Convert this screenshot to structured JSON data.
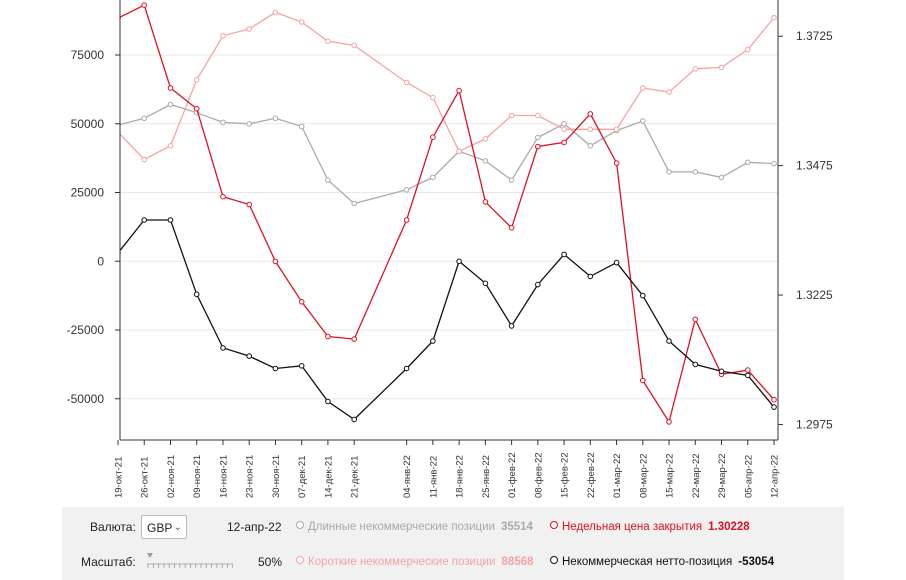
{
  "chart_data": {
    "type": "line",
    "x": [
      "19-окт-21",
      "26-окт-21",
      "02-ноя-21",
      "09-ноя-21",
      "16-ноя-21",
      "23-ноя-21",
      "30-ноя-21",
      "07-дек-21",
      "14-дек-21",
      "21-дек-21",
      "04-янв-22",
      "11-янв-22",
      "18-янв-22",
      "25-янв-22",
      "01-фев-22",
      "08-фев-22",
      "15-фев-22",
      "22-фев-22",
      "01-мар-22",
      "08-мар-22",
      "15-мар-22",
      "22-мар-22",
      "29-мар-22",
      "05-апр-22",
      "12-апр-22"
    ],
    "xdays": [
      0,
      7,
      14,
      21,
      28,
      35,
      42,
      49,
      56,
      63,
      77,
      84,
      91,
      98,
      105,
      112,
      119,
      126,
      133,
      140,
      147,
      154,
      161,
      168,
      175
    ],
    "x_tick_labels": [
      "19-окт-21",
      "26-окт-21",
      "02-ноя-21",
      "09-ноя-21",
      "16-ноя-21",
      "23-ноя-21",
      "30-ноя-21",
      "07-дек-21",
      "14-дек-21",
      "21-дек-21",
      "04-янв-22",
      "11-янв-22",
      "18-янв-22",
      "25-янв-22",
      "01-фев-22",
      "08-фев-22",
      "15-фев-22",
      "22-фев-22",
      "01-мар-22",
      "08-мар-22",
      "15-мар-22",
      "22-мар-22",
      "29-мар-22",
      "05-апр-22",
      "12-апр-22"
    ],
    "y_left": {
      "ticks": [
        75000,
        50000,
        25000,
        0,
        -25000,
        -50000
      ],
      "ylim": [
        -65000,
        95000
      ]
    },
    "y_right": {
      "ticks": [
        "1.3725",
        "1.3475",
        "1.3225",
        "1.2975"
      ],
      "tick_values": [
        1.3725,
        1.3475,
        1.3225,
        1.2975
      ],
      "ylim": [
        1.2945,
        1.3795
      ]
    },
    "series": [
      {
        "name": "Длинные некоммерческие позиции",
        "axis": "left",
        "color": "#aaaaaa",
        "values": [
          49500,
          52000,
          57000,
          54000,
          50500,
          50000,
          52000,
          49000,
          29500,
          21000,
          26000,
          30500,
          40000,
          36500,
          29500,
          45000,
          50000,
          42000,
          47500,
          51000,
          32500,
          32500,
          30500,
          36000,
          35514
        ]
      },
      {
        "name": "Короткие некоммерческие позиции",
        "axis": "left",
        "color": "#f4a3a3",
        "values": [
          47000,
          37000,
          42000,
          66000,
          82000,
          84500,
          90500,
          87000,
          80000,
          78500,
          65000,
          59500,
          40000,
          44500,
          53000,
          53000,
          48000,
          48000,
          48000,
          63000,
          61500,
          70000,
          70500,
          77000,
          88568
        ]
      },
      {
        "name": "Недельная цена закрытия",
        "axis": "right",
        "color": "#dd1122",
        "values": [
          1.376,
          1.3785,
          1.3625,
          1.3585,
          1.3415,
          1.34,
          1.329,
          1.3212,
          1.3145,
          1.314,
          1.337,
          1.353,
          1.362,
          1.3405,
          1.3355,
          1.3512,
          1.352,
          1.3575,
          1.348,
          1.306,
          1.298,
          1.3178,
          1.3072,
          1.308,
          1.30228
        ]
      },
      {
        "name": "Некоммерческая нетто-позиция",
        "axis": "left",
        "color": "#111111",
        "values": [
          3000,
          15000,
          15000,
          -12000,
          -31500,
          -34500,
          -39000,
          -38000,
          -51000,
          -57500,
          -39000,
          -29000,
          0,
          -8000,
          -23500,
          -8500,
          2500,
          -5500,
          -500,
          -12500,
          -29000,
          -37500,
          -40000,
          -41500,
          -53054
        ]
      }
    ]
  },
  "controls": {
    "currency_label": "Валюта:",
    "currency_value": "GBP",
    "date": "12-апр-22",
    "scale_label": "Масштаб:",
    "scale_value": "50%",
    "scale_level": 0.0
  },
  "legend": {
    "long": {
      "label": "Длинные некоммерческие позиции",
      "value": "35514"
    },
    "short": {
      "label": "Короткие некоммерческие позиции",
      "value": "88568"
    },
    "close": {
      "label": "Недельная цена закрытия",
      "value": "1.30228"
    },
    "net": {
      "label": "Некоммерческая нетто-позиция",
      "value": "-53054"
    }
  },
  "colors": {
    "long": "#aaaaaa",
    "short": "#f4a3a3",
    "close": "#dd1122",
    "net": "#111111",
    "grid": "#e8e8e8",
    "axis": "#333333"
  }
}
